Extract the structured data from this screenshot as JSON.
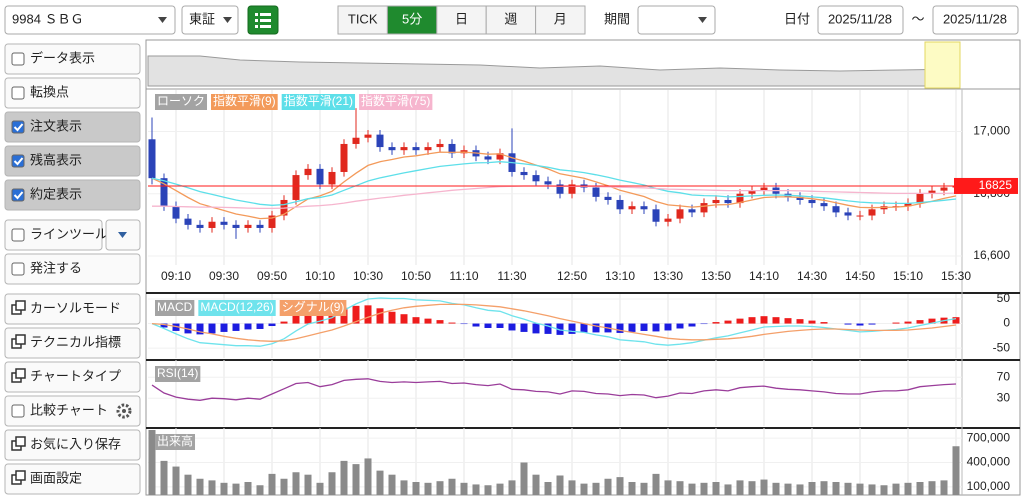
{
  "toolbar": {
    "symbol": "9984 ＳＢＧ",
    "market": "東証",
    "intervals": [
      "TICK",
      "5分",
      "日",
      "週",
      "月"
    ],
    "active_interval": 1,
    "period_label": "期間",
    "date_label": "日付",
    "date_from": "2025/11/28",
    "separator": "～",
    "date_to": "2025/11/28"
  },
  "sidebar": [
    {
      "label": "データ表示",
      "kind": "checkbox",
      "checked": false
    },
    {
      "label": "転換点",
      "kind": "checkbox",
      "checked": false
    },
    {
      "label": "注文表示",
      "kind": "checkbox",
      "checked": true
    },
    {
      "label": "残高表示",
      "kind": "checkbox",
      "checked": true
    },
    {
      "label": "約定表示",
      "kind": "checkbox",
      "checked": true
    },
    {
      "label": "ラインツール",
      "kind": "checkbox",
      "checked": false,
      "extra": "dropdown"
    },
    {
      "label": "発注する",
      "kind": "checkbox",
      "checked": false
    },
    {
      "label": "カーソルモード",
      "kind": "icon"
    },
    {
      "label": "テクニカル指標",
      "kind": "icon"
    },
    {
      "label": "チャートタイプ",
      "kind": "icon"
    },
    {
      "label": "比較チャート",
      "kind": "checkbox",
      "checked": false,
      "extra": "gear"
    },
    {
      "label": "お気に入り保存",
      "kind": "icon"
    },
    {
      "label": "画面設定",
      "kind": "icon"
    }
  ],
  "chart_data": [
    {
      "type": "candlestick",
      "candle_label": "ローソク",
      "label_color": "#a3a3a3",
      "up_color": "#e0281e",
      "down_color": "#2b43b8",
      "categories": [
        null,
        null,
        "09:10",
        null,
        null,
        null,
        "09:30",
        null,
        null,
        null,
        "09:50",
        null,
        null,
        null,
        "10:10",
        null,
        null,
        null,
        "10:30",
        null,
        null,
        null,
        "10:50",
        null,
        null,
        null,
        "11:10",
        null,
        null,
        null,
        "11:30",
        null,
        null,
        null,
        null,
        "12:50",
        null,
        null,
        null,
        "13:10",
        null,
        null,
        null,
        "13:30",
        null,
        null,
        null,
        "13:50",
        null,
        null,
        null,
        "14:10",
        null,
        null,
        null,
        "14:30",
        null,
        null,
        null,
        "14:50",
        null,
        null,
        null,
        "15:10",
        null,
        null,
        null,
        "15:30"
      ],
      "open": [
        16975,
        16850,
        16760,
        16720,
        16700,
        16690,
        16710,
        16700,
        16690,
        16700,
        16690,
        16730,
        16780,
        16860,
        16880,
        16830,
        16870,
        16960,
        16980,
        16990,
        16950,
        16940,
        16950,
        16940,
        16950,
        16960,
        16930,
        16940,
        16920,
        16910,
        16930,
        16870,
        16860,
        16840,
        16830,
        16800,
        16830,
        16820,
        16790,
        16780,
        16750,
        16760,
        16750,
        16710,
        16720,
        16750,
        16740,
        16770,
        16780,
        16770,
        16800,
        16810,
        16820,
        16800,
        16790,
        16780,
        16770,
        16760,
        16740,
        16730,
        16730,
        16750,
        16760,
        16760,
        16770,
        16800,
        16810,
        16820
      ],
      "high": [
        17045,
        16865,
        16775,
        16735,
        16715,
        16725,
        16725,
        16715,
        16715,
        16715,
        16745,
        16795,
        16875,
        16895,
        16895,
        16885,
        16975,
        17075,
        17005,
        17005,
        16965,
        16965,
        16965,
        16965,
        16975,
        16975,
        16955,
        16955,
        16935,
        16945,
        17010,
        16885,
        16875,
        16855,
        16845,
        16845,
        16845,
        16835,
        16805,
        16795,
        16775,
        16775,
        16765,
        16735,
        16765,
        16765,
        16785,
        16795,
        16795,
        16815,
        16825,
        16835,
        16835,
        16815,
        16805,
        16795,
        16785,
        16775,
        16755,
        16745,
        16765,
        16775,
        16775,
        16785,
        16815,
        16825,
        16835,
        16840
      ],
      "low": [
        16830,
        16745,
        16705,
        16685,
        16675,
        16675,
        16685,
        16655,
        16675,
        16675,
        16675,
        16715,
        16765,
        16845,
        16815,
        16815,
        16855,
        16945,
        16965,
        16935,
        16925,
        16925,
        16925,
        16925,
        16935,
        16915,
        16915,
        16905,
        16895,
        16895,
        16855,
        16845,
        16825,
        16815,
        16785,
        16785,
        16805,
        16775,
        16765,
        16735,
        16735,
        16735,
        16695,
        16695,
        16705,
        16725,
        16725,
        16755,
        16755,
        16755,
        16785,
        16795,
        16785,
        16775,
        16765,
        16755,
        16745,
        16725,
        16715,
        16715,
        16715,
        16735,
        16745,
        16745,
        16755,
        16785,
        16795,
        16805
      ],
      "close": [
        16850,
        16760,
        16720,
        16700,
        16690,
        16710,
        16700,
        16690,
        16700,
        16690,
        16730,
        16780,
        16860,
        16880,
        16830,
        16870,
        16960,
        16980,
        16990,
        16950,
        16940,
        16950,
        16940,
        16950,
        16960,
        16930,
        16940,
        16920,
        16910,
        16930,
        16870,
        16860,
        16840,
        16830,
        16800,
        16830,
        16820,
        16790,
        16780,
        16750,
        16760,
        16750,
        16710,
        16720,
        16750,
        16740,
        16770,
        16780,
        16770,
        16800,
        16810,
        16820,
        16800,
        16790,
        16780,
        16770,
        16760,
        16740,
        16730,
        16730,
        16750,
        16760,
        16760,
        16770,
        16800,
        16810,
        16820,
        16825
      ],
      "series": [
        {
          "name": "指数平滑(9)",
          "color": "#f39a5a",
          "values": [
            16850,
            16832,
            16810,
            16788,
            16768,
            16757,
            16746,
            16735,
            16728,
            16720,
            16722,
            16734,
            16759,
            16783,
            16793,
            16808,
            16838,
            16866,
            16891,
            16903,
            16910,
            16918,
            16922,
            16928,
            16934,
            16933,
            16934,
            16931,
            16927,
            16928,
            16916,
            16905,
            16892,
            16880,
            16864,
            16857,
            16850,
            16838,
            16826,
            16811,
            16801,
            16791,
            16775,
            16764,
            16761,
            16757,
            16760,
            16764,
            16765,
            16772,
            16780,
            16788,
            16790,
            16790,
            16788,
            16784,
            16779,
            16771,
            16763,
            16756,
            16755,
            16756,
            16757,
            16760,
            16768,
            16776,
            16785,
            16793
          ]
        },
        {
          "name": "指数平滑(21)",
          "color": "#5ddfe9",
          "values": [
            16850,
            16842,
            16831,
            16819,
            16807,
            16798,
            16789,
            16780,
            16773,
            16766,
            16763,
            16765,
            16774,
            16784,
            16788,
            16796,
            16811,
            16826,
            16841,
            16851,
            16859,
            16867,
            16874,
            16881,
            16888,
            16892,
            16896,
            16899,
            16900,
            16903,
            16900,
            16896,
            16891,
            16885,
            16877,
            16873,
            16868,
            16861,
            16853,
            16844,
            16836,
            16828,
            16817,
            16808,
            16803,
            16796,
            16794,
            16793,
            16790,
            16791,
            16793,
            16795,
            16796,
            16795,
            16793,
            16790,
            16787,
            16782,
            16777,
            16773,
            16771,
            16770,
            16769,
            16769,
            16772,
            16775,
            16779,
            16783
          ]
        },
        {
          "name": "指数平滑(75)",
          "color": "#f6b5ce",
          "values": [
            16760,
            16760,
            16759,
            16758,
            16757,
            16757,
            16756,
            16755,
            16754,
            16753,
            16753,
            16754,
            16757,
            16760,
            16762,
            16765,
            16770,
            16776,
            16781,
            16786,
            16790,
            16795,
            16799,
            16803,
            16807,
            16811,
            16814,
            16817,
            16820,
            16823,
            16824,
            16825,
            16825,
            16825,
            16824,
            16824,
            16824,
            16823,
            16822,
            16821,
            16820,
            16819,
            16817,
            16815,
            16814,
            16813,
            16812,
            16811,
            16810,
            16810,
            16810,
            16810,
            16810,
            16810,
            16809,
            16808,
            16807,
            16806,
            16805,
            16804,
            16803,
            16802,
            16801,
            16801,
            16801,
            16801,
            16801,
            16802
          ]
        }
      ],
      "ylim": [
        16571,
        17127
      ],
      "yticks": [
        {
          "value": 16600,
          "label": "16,600"
        },
        {
          "value": 16800,
          "label": "16,800"
        },
        {
          "value": 17000,
          "label": "17,000"
        }
      ],
      "last_price": 16825,
      "last_price_color": "#ff1a1a"
    },
    {
      "type": "combo",
      "ylim": [
        -70,
        56
      ],
      "yticks": [
        -50,
        0,
        50
      ],
      "series": [
        {
          "name": "MACD",
          "type": "bar",
          "label_color": "#a3a3a3",
          "color": "#ee1c1c",
          "negative_color": "#1c1ce0",
          "values": [
            0,
            -8,
            -15,
            -20,
            -22,
            -20,
            -17,
            -15,
            -12,
            -11,
            -5,
            4,
            16,
            24,
            24,
            25,
            32,
            36,
            37,
            31,
            24,
            19,
            13,
            10,
            7,
            2,
            -1,
            -6,
            -9,
            -9,
            -14,
            -17,
            -20,
            -21,
            -23,
            -21,
            -18,
            -18,
            -18,
            -19,
            -17,
            -15,
            -16,
            -14,
            -10,
            -6,
            -1,
            3,
            6,
            10,
            13,
            15,
            13,
            11,
            9,
            6,
            3,
            0,
            -2,
            -4,
            -2,
            0,
            2,
            4,
            7,
            10,
            12,
            13
          ]
        },
        {
          "name": "MACD(12,26)",
          "type": "line",
          "color": "#6fe3ec",
          "values": [
            0,
            -10,
            -21,
            -31,
            -39,
            -41,
            -43,
            -45,
            -45,
            -46,
            -41,
            -31,
            -15,
            -1,
            5,
            12,
            27,
            40,
            50,
            52,
            51,
            51,
            48,
            47,
            46,
            41,
            38,
            32,
            27,
            25,
            16,
            9,
            1,
            -5,
            -13,
            -16,
            -18,
            -23,
            -27,
            -33,
            -35,
            -37,
            -42,
            -44,
            -42,
            -39,
            -34,
            -29,
            -25,
            -19,
            -13,
            -7,
            -6,
            -5,
            -5,
            -6,
            -8,
            -11,
            -14,
            -17,
            -16,
            -14,
            -12,
            -9,
            -4,
            1,
            6,
            10
          ]
        },
        {
          "name": "シグナル(9)",
          "type": "line",
          "color": "#f4a06a",
          "values": [
            0,
            -2,
            -6,
            -11,
            -17,
            -21,
            -26,
            -30,
            -33,
            -35,
            -36,
            -35,
            -31,
            -25,
            -19,
            -13,
            -5,
            4,
            13,
            21,
            27,
            32,
            35,
            37,
            39,
            39,
            39,
            38,
            36,
            34,
            30,
            26,
            21,
            16,
            10,
            5,
            0,
            -5,
            -9,
            -14,
            -18,
            -22,
            -26,
            -30,
            -32,
            -33,
            -33,
            -32,
            -31,
            -29,
            -26,
            -22,
            -19,
            -16,
            -14,
            -12,
            -11,
            -11,
            -12,
            -13,
            -14,
            -14,
            -14,
            -13,
            -11,
            -9,
            -6,
            -3
          ]
        }
      ]
    },
    {
      "type": "line",
      "ylim": [
        -23,
        99
      ],
      "yticks": [
        30,
        70
      ],
      "series": [
        {
          "name": "RSI(14)",
          "color": "#9a3d9a",
          "label_color": "#a3a3a3",
          "values": [
            55,
            40,
            32,
            28,
            26,
            30,
            29,
            27,
            30,
            28,
            38,
            48,
            58,
            60,
            52,
            56,
            64,
            66,
            67,
            62,
            60,
            61,
            60,
            61,
            62,
            58,
            59,
            56,
            54,
            57,
            47,
            46,
            43,
            42,
            38,
            44,
            43,
            39,
            38,
            35,
            37,
            36,
            31,
            34,
            40,
            39,
            44,
            46,
            44,
            50,
            52,
            53,
            49,
            47,
            46,
            44,
            42,
            39,
            38,
            38,
            42,
            44,
            44,
            46,
            52,
            54,
            56,
            57
          ]
        }
      ]
    },
    {
      "type": "bar",
      "ylim": [
        0,
        800000
      ],
      "yticks": [
        {
          "value": 100000,
          "label": "100,000"
        },
        {
          "value": 400000,
          "label": "400,000"
        },
        {
          "value": 700000,
          "label": "700,000"
        }
      ],
      "series": [
        {
          "name": "出来高",
          "color": "#8a8a8a",
          "label_color": "#a3a3a3",
          "values": [
            800000,
            420000,
            350000,
            250000,
            200000,
            180000,
            150000,
            140000,
            160000,
            120000,
            260000,
            200000,
            280000,
            250000,
            150000,
            280000,
            420000,
            380000,
            450000,
            300000,
            250000,
            180000,
            160000,
            150000,
            170000,
            200000,
            150000,
            130000,
            120000,
            140000,
            180000,
            400000,
            250000,
            160000,
            240000,
            180000,
            140000,
            150000,
            200000,
            220000,
            160000,
            150000,
            260000,
            180000,
            170000,
            140000,
            150000,
            160000,
            130000,
            180000,
            170000,
            190000,
            150000,
            140000,
            130000,
            160000,
            170000,
            160000,
            150000,
            140000,
            130000,
            120000,
            140000,
            150000,
            160000,
            170000,
            180000,
            600000
          ]
        }
      ]
    }
  ]
}
